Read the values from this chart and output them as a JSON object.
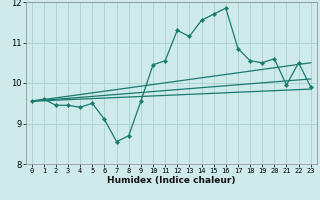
{
  "title": "",
  "xlabel": "Humidex (Indice chaleur)",
  "bg_color": "#ceeaea",
  "grid_color": "#a8d0d0",
  "line_color": "#1a7a6e",
  "xlim": [
    -0.5,
    23.5
  ],
  "ylim": [
    8,
    12
  ],
  "xticks": [
    0,
    1,
    2,
    3,
    4,
    5,
    6,
    7,
    8,
    9,
    10,
    11,
    12,
    13,
    14,
    15,
    16,
    17,
    18,
    19,
    20,
    21,
    22,
    23
  ],
  "yticks": [
    8,
    9,
    10,
    11,
    12
  ],
  "main_line_x": [
    0,
    1,
    2,
    3,
    4,
    5,
    6,
    7,
    8,
    9,
    10,
    11,
    12,
    13,
    14,
    15,
    16,
    17,
    18,
    19,
    20,
    21,
    22,
    23
  ],
  "main_line_y": [
    9.55,
    9.6,
    9.45,
    9.45,
    9.4,
    9.5,
    9.1,
    8.55,
    8.7,
    9.55,
    10.45,
    10.55,
    11.3,
    11.15,
    11.55,
    11.7,
    11.85,
    10.85,
    10.55,
    10.5,
    10.6,
    9.95,
    10.5,
    9.9
  ],
  "line2_x": [
    0,
    23
  ],
  "line2_y": [
    9.55,
    10.5
  ],
  "line3_x": [
    0,
    23
  ],
  "line3_y": [
    9.55,
    9.85
  ],
  "line4_x": [
    0,
    23
  ],
  "line4_y": [
    9.55,
    10.1
  ]
}
